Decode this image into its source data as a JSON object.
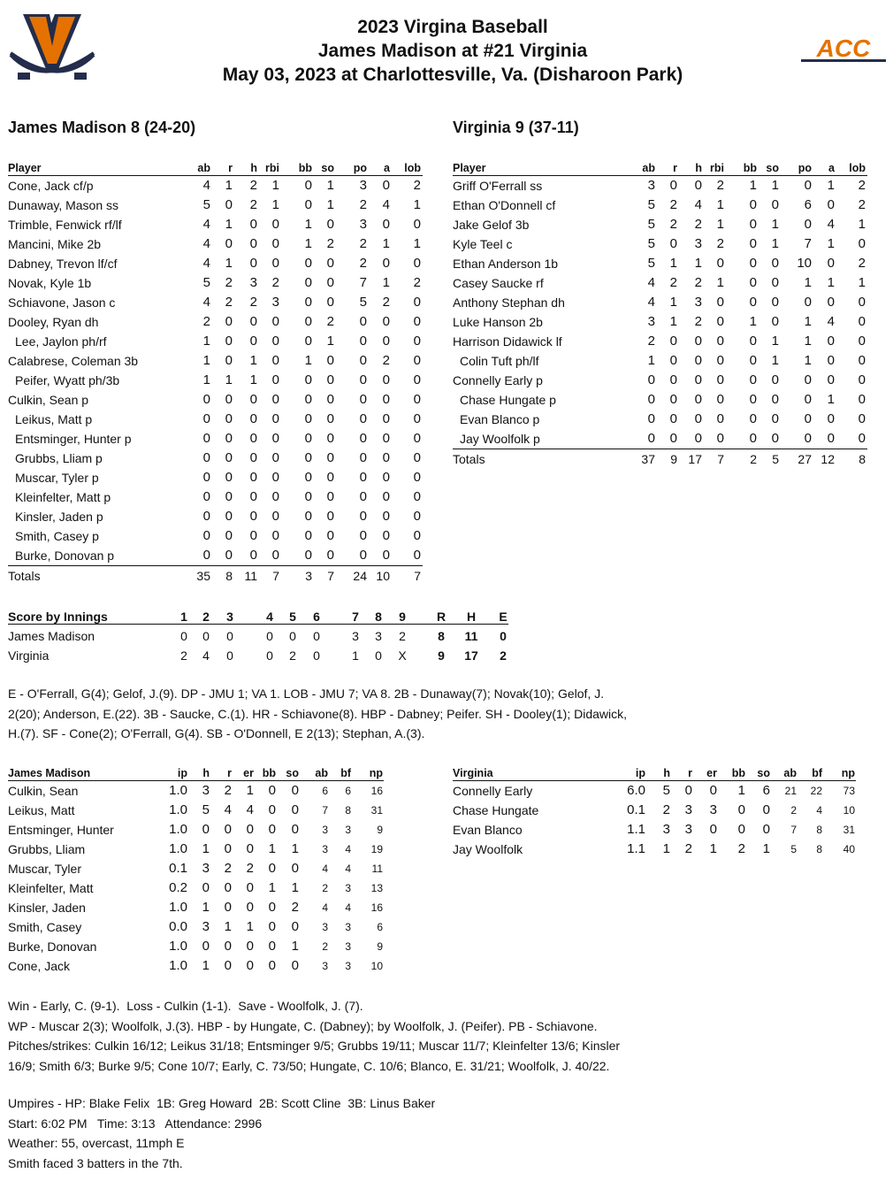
{
  "header": {
    "line1": "2023 Virgina Baseball",
    "line2": "James Madison at #21 Virginia",
    "line3": "May 03, 2023 at Charlottesville, Va. (Disharoon Park)",
    "left_logo": "Virginia V-sabres logo",
    "right_logo": "ACC",
    "accent": "#E57200",
    "navy": "#232D4B"
  },
  "batting": {
    "columns": [
      "Player",
      "ab",
      "r",
      "h",
      "rbi",
      "bb",
      "so",
      "po",
      "a",
      "lob"
    ],
    "away": {
      "title": "James Madison 8 (24-20)",
      "rows": [
        {
          "p": "Cone, Jack cf/p",
          "v": [
            "4",
            "1",
            "2",
            "1",
            "0",
            "1",
            "3",
            "0",
            "2"
          ]
        },
        {
          "p": "Dunaway, Mason ss",
          "v": [
            "5",
            "0",
            "2",
            "1",
            "0",
            "1",
            "2",
            "4",
            "1"
          ]
        },
        {
          "p": "Trimble, Fenwick rf/lf",
          "v": [
            "4",
            "1",
            "0",
            "0",
            "1",
            "0",
            "3",
            "0",
            "0"
          ]
        },
        {
          "p": "Mancini, Mike 2b",
          "v": [
            "4",
            "0",
            "0",
            "0",
            "1",
            "2",
            "2",
            "1",
            "1"
          ]
        },
        {
          "p": "Dabney, Trevon lf/cf",
          "v": [
            "4",
            "1",
            "0",
            "0",
            "0",
            "0",
            "2",
            "0",
            "0"
          ]
        },
        {
          "p": "Novak, Kyle 1b",
          "v": [
            "5",
            "2",
            "3",
            "2",
            "0",
            "0",
            "7",
            "1",
            "2"
          ]
        },
        {
          "p": "Schiavone, Jason c",
          "v": [
            "4",
            "2",
            "2",
            "3",
            "0",
            "0",
            "5",
            "2",
            "0"
          ]
        },
        {
          "p": "Dooley, Ryan dh",
          "v": [
            "2",
            "0",
            "0",
            "0",
            "0",
            "2",
            "0",
            "0",
            "0"
          ]
        },
        {
          "p": "Lee, Jaylon ph/rf",
          "sub": true,
          "v": [
            "1",
            "0",
            "0",
            "0",
            "0",
            "1",
            "0",
            "0",
            "0"
          ]
        },
        {
          "p": "Calabrese, Coleman 3b",
          "v": [
            "1",
            "0",
            "1",
            "0",
            "1",
            "0",
            "0",
            "2",
            "0"
          ]
        },
        {
          "p": "Peifer, Wyatt ph/3b",
          "sub": true,
          "v": [
            "1",
            "1",
            "1",
            "0",
            "0",
            "0",
            "0",
            "0",
            "0"
          ]
        },
        {
          "p": "Culkin, Sean p",
          "v": [
            "0",
            "0",
            "0",
            "0",
            "0",
            "0",
            "0",
            "0",
            "0"
          ]
        },
        {
          "p": "Leikus, Matt p",
          "sub": true,
          "v": [
            "0",
            "0",
            "0",
            "0",
            "0",
            "0",
            "0",
            "0",
            "0"
          ]
        },
        {
          "p": "Entsminger, Hunter p",
          "sub": true,
          "v": [
            "0",
            "0",
            "0",
            "0",
            "0",
            "0",
            "0",
            "0",
            "0"
          ]
        },
        {
          "p": "Grubbs, Lliam p",
          "sub": true,
          "v": [
            "0",
            "0",
            "0",
            "0",
            "0",
            "0",
            "0",
            "0",
            "0"
          ]
        },
        {
          "p": "Muscar, Tyler p",
          "sub": true,
          "v": [
            "0",
            "0",
            "0",
            "0",
            "0",
            "0",
            "0",
            "0",
            "0"
          ]
        },
        {
          "p": "Kleinfelter, Matt p",
          "sub": true,
          "v": [
            "0",
            "0",
            "0",
            "0",
            "0",
            "0",
            "0",
            "0",
            "0"
          ]
        },
        {
          "p": "Kinsler, Jaden p",
          "sub": true,
          "v": [
            "0",
            "0",
            "0",
            "0",
            "0",
            "0",
            "0",
            "0",
            "0"
          ]
        },
        {
          "p": "Smith, Casey p",
          "sub": true,
          "v": [
            "0",
            "0",
            "0",
            "0",
            "0",
            "0",
            "0",
            "0",
            "0"
          ]
        },
        {
          "p": "Burke, Donovan p",
          "sub": true,
          "v": [
            "0",
            "0",
            "0",
            "0",
            "0",
            "0",
            "0",
            "0",
            "0"
          ]
        }
      ],
      "totals": {
        "p": "Totals",
        "v": [
          "35",
          "8",
          "11",
          "7",
          "3",
          "7",
          "24",
          "10",
          "7"
        ]
      }
    },
    "home": {
      "title": "Virginia 9 (37-11)",
      "rows": [
        {
          "p": "Griff O'Ferrall ss",
          "v": [
            "3",
            "0",
            "0",
            "2",
            "1",
            "1",
            "0",
            "1",
            "2"
          ]
        },
        {
          "p": "Ethan O'Donnell cf",
          "v": [
            "5",
            "2",
            "4",
            "1",
            "0",
            "0",
            "6",
            "0",
            "2"
          ]
        },
        {
          "p": "Jake Gelof 3b",
          "v": [
            "5",
            "2",
            "2",
            "1",
            "0",
            "1",
            "0",
            "4",
            "1"
          ]
        },
        {
          "p": "Kyle Teel c",
          "v": [
            "5",
            "0",
            "3",
            "2",
            "0",
            "1",
            "7",
            "1",
            "0"
          ]
        },
        {
          "p": "Ethan Anderson 1b",
          "v": [
            "5",
            "1",
            "1",
            "0",
            "0",
            "0",
            "10",
            "0",
            "2"
          ]
        },
        {
          "p": "Casey Saucke rf",
          "v": [
            "4",
            "2",
            "2",
            "1",
            "0",
            "0",
            "1",
            "1",
            "1"
          ]
        },
        {
          "p": "Anthony Stephan dh",
          "v": [
            "4",
            "1",
            "3",
            "0",
            "0",
            "0",
            "0",
            "0",
            "0"
          ]
        },
        {
          "p": "Luke Hanson 2b",
          "v": [
            "3",
            "1",
            "2",
            "0",
            "1",
            "0",
            "1",
            "4",
            "0"
          ]
        },
        {
          "p": "Harrison Didawick lf",
          "v": [
            "2",
            "0",
            "0",
            "0",
            "0",
            "1",
            "1",
            "0",
            "0"
          ]
        },
        {
          "p": "Colin Tuft ph/lf",
          "sub": true,
          "v": [
            "1",
            "0",
            "0",
            "0",
            "0",
            "1",
            "1",
            "0",
            "0"
          ]
        },
        {
          "p": "Connelly Early p",
          "v": [
            "0",
            "0",
            "0",
            "0",
            "0",
            "0",
            "0",
            "0",
            "0"
          ]
        },
        {
          "p": "Chase Hungate p",
          "sub": true,
          "v": [
            "0",
            "0",
            "0",
            "0",
            "0",
            "0",
            "0",
            "1",
            "0"
          ]
        },
        {
          "p": "Evan Blanco p",
          "sub": true,
          "v": [
            "0",
            "0",
            "0",
            "0",
            "0",
            "0",
            "0",
            "0",
            "0"
          ]
        },
        {
          "p": "Jay Woolfolk p",
          "sub": true,
          "v": [
            "0",
            "0",
            "0",
            "0",
            "0",
            "0",
            "0",
            "0",
            "0"
          ]
        }
      ],
      "totals": {
        "p": "Totals",
        "v": [
          "37",
          "9",
          "17",
          "7",
          "2",
          "5",
          "27",
          "12",
          "8"
        ]
      }
    }
  },
  "score_by_innings": {
    "title": "Score by Innings",
    "innings": [
      "1",
      "2",
      "3",
      "4",
      "5",
      "6",
      "7",
      "8",
      "9"
    ],
    "rhe": [
      "R",
      "H",
      "E"
    ],
    "teams": [
      {
        "name": "James Madison",
        "v": [
          "0",
          "0",
          "0",
          "0",
          "0",
          "0",
          "3",
          "3",
          "2"
        ],
        "rhe": [
          "8",
          "11",
          "0"
        ]
      },
      {
        "name": "Virginia",
        "v": [
          "2",
          "4",
          "0",
          "0",
          "2",
          "0",
          "1",
          "0",
          "X"
        ],
        "rhe": [
          "9",
          "17",
          "2"
        ]
      }
    ]
  },
  "notes1": [
    "E - O'Ferrall, G(4); Gelof, J.(9). DP - JMU 1; VA 1. LOB - JMU 7; VA 8. 2B - Dunaway(7); Novak(10); Gelof, J.",
    "2(20); Anderson, E.(22). 3B - Saucke, C.(1). HR - Schiavone(8). HBP - Dabney; Peifer. SH - Dooley(1); Didawick,",
    "H.(7). SF - Cone(2); O'Ferrall, G(4). SB - O'Donnell, E 2(13); Stephan, A.(3)."
  ],
  "pitching": {
    "columns": [
      "ip",
      "h",
      "r",
      "er",
      "bb",
      "so",
      "ab",
      "bf",
      "np"
    ],
    "away": {
      "title": "James Madison",
      "rows": [
        {
          "p": "Culkin, Sean",
          "v": [
            "1.0",
            "3",
            "2",
            "1",
            "0",
            "0",
            "6",
            "6",
            "16"
          ]
        },
        {
          "p": "Leikus, Matt",
          "v": [
            "1.0",
            "5",
            "4",
            "4",
            "0",
            "0",
            "7",
            "8",
            "31"
          ]
        },
        {
          "p": "Entsminger, Hunter",
          "v": [
            "1.0",
            "0",
            "0",
            "0",
            "0",
            "0",
            "3",
            "3",
            "9"
          ]
        },
        {
          "p": "Grubbs, Lliam",
          "v": [
            "1.0",
            "1",
            "0",
            "0",
            "1",
            "1",
            "3",
            "4",
            "19"
          ]
        },
        {
          "p": "Muscar, Tyler",
          "v": [
            "0.1",
            "3",
            "2",
            "2",
            "0",
            "0",
            "4",
            "4",
            "11"
          ]
        },
        {
          "p": "Kleinfelter, Matt",
          "v": [
            "0.2",
            "0",
            "0",
            "0",
            "1",
            "1",
            "2",
            "3",
            "13"
          ]
        },
        {
          "p": "Kinsler, Jaden",
          "v": [
            "1.0",
            "1",
            "0",
            "0",
            "0",
            "2",
            "4",
            "4",
            "16"
          ]
        },
        {
          "p": "Smith, Casey",
          "v": [
            "0.0",
            "3",
            "1",
            "1",
            "0",
            "0",
            "3",
            "3",
            "6"
          ]
        },
        {
          "p": "Burke, Donovan",
          "v": [
            "1.0",
            "0",
            "0",
            "0",
            "0",
            "1",
            "2",
            "3",
            "9"
          ]
        },
        {
          "p": "Cone, Jack",
          "v": [
            "1.0",
            "1",
            "0",
            "0",
            "0",
            "0",
            "3",
            "3",
            "10"
          ]
        }
      ]
    },
    "home": {
      "title": "Virginia",
      "rows": [
        {
          "p": "Connelly Early",
          "v": [
            "6.0",
            "5",
            "0",
            "0",
            "1",
            "6",
            "21",
            "22",
            "73"
          ]
        },
        {
          "p": "Chase Hungate",
          "v": [
            "0.1",
            "2",
            "3",
            "3",
            "0",
            "0",
            "2",
            "4",
            "10"
          ]
        },
        {
          "p": "Evan Blanco",
          "v": [
            "1.1",
            "3",
            "3",
            "0",
            "0",
            "0",
            "7",
            "8",
            "31"
          ]
        },
        {
          "p": "Jay Woolfolk",
          "v": [
            "1.1",
            "1",
            "2",
            "1",
            "2",
            "1",
            "5",
            "8",
            "40"
          ]
        }
      ]
    }
  },
  "notes2": [
    "Win - Early, C. (9-1).  Loss - Culkin (1-1).  Save - Woolfolk, J. (7).",
    "WP - Muscar 2(3); Woolfolk, J.(3). HBP - by Hungate, C. (Dabney); by Woolfolk, J. (Peifer). PB - Schiavone.",
    "Pitches/strikes: Culkin 16/12; Leikus 31/18; Entsminger 9/5; Grubbs 19/11; Muscar 11/7; Kleinfelter 13/6; Kinsler",
    "16/9; Smith 6/3; Burke 9/5; Cone 10/7; Early, C. 73/50; Hungate, C. 10/6; Blanco, E. 31/21; Woolfolk, J. 40/22."
  ],
  "notes3": [
    "Umpires - HP: Blake Felix  1B: Greg Howard  2B: Scott Cline  3B: Linus Baker",
    "Start: 6:02 PM   Time: 3:13   Attendance: 2996",
    "Weather: 55, overcast, 11mph E",
    "Smith faced 3 batters in the 7th."
  ]
}
